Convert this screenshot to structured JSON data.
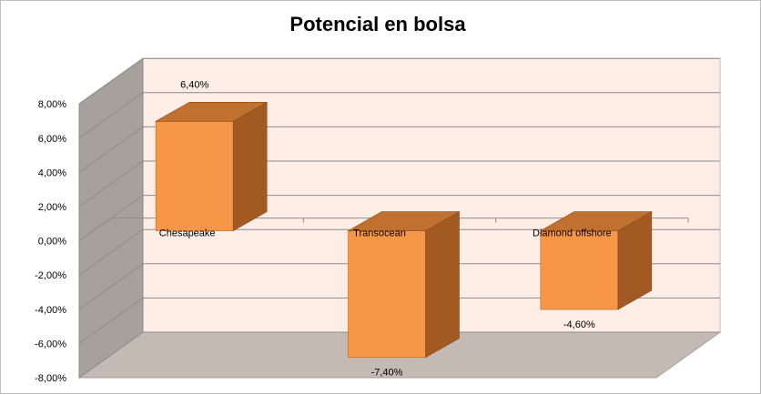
{
  "chart_data": {
    "type": "bar",
    "title": "Potencial en bolsa",
    "categories": [
      "Chesapeake",
      "Transocean",
      "Diamond offshore"
    ],
    "values": [
      6.4,
      -7.4,
      -4.6
    ],
    "data_labels": [
      "6,40%",
      "-7,40%",
      "-4,60%"
    ],
    "ylim": [
      -8,
      8
    ],
    "yticks": [
      8,
      6,
      4,
      2,
      0,
      -2,
      -4,
      -6,
      -8
    ],
    "ytick_labels": [
      "8,00%",
      "6,00%",
      "4,00%",
      "2,00%",
      "0,00%",
      "-2,00%",
      "-4,00%",
      "-6,00%",
      "-8,00%"
    ],
    "grid": true,
    "legend": "none",
    "three_d": true
  },
  "colors": {
    "bar_front": "#F79646",
    "bar_top": "#C0712F",
    "bar_side": "#A35A22",
    "back_wall": "#FDEDE5",
    "side_wall": "#A7A19E",
    "floor": "#C4B9B3",
    "grid": "#8C8C8C"
  }
}
